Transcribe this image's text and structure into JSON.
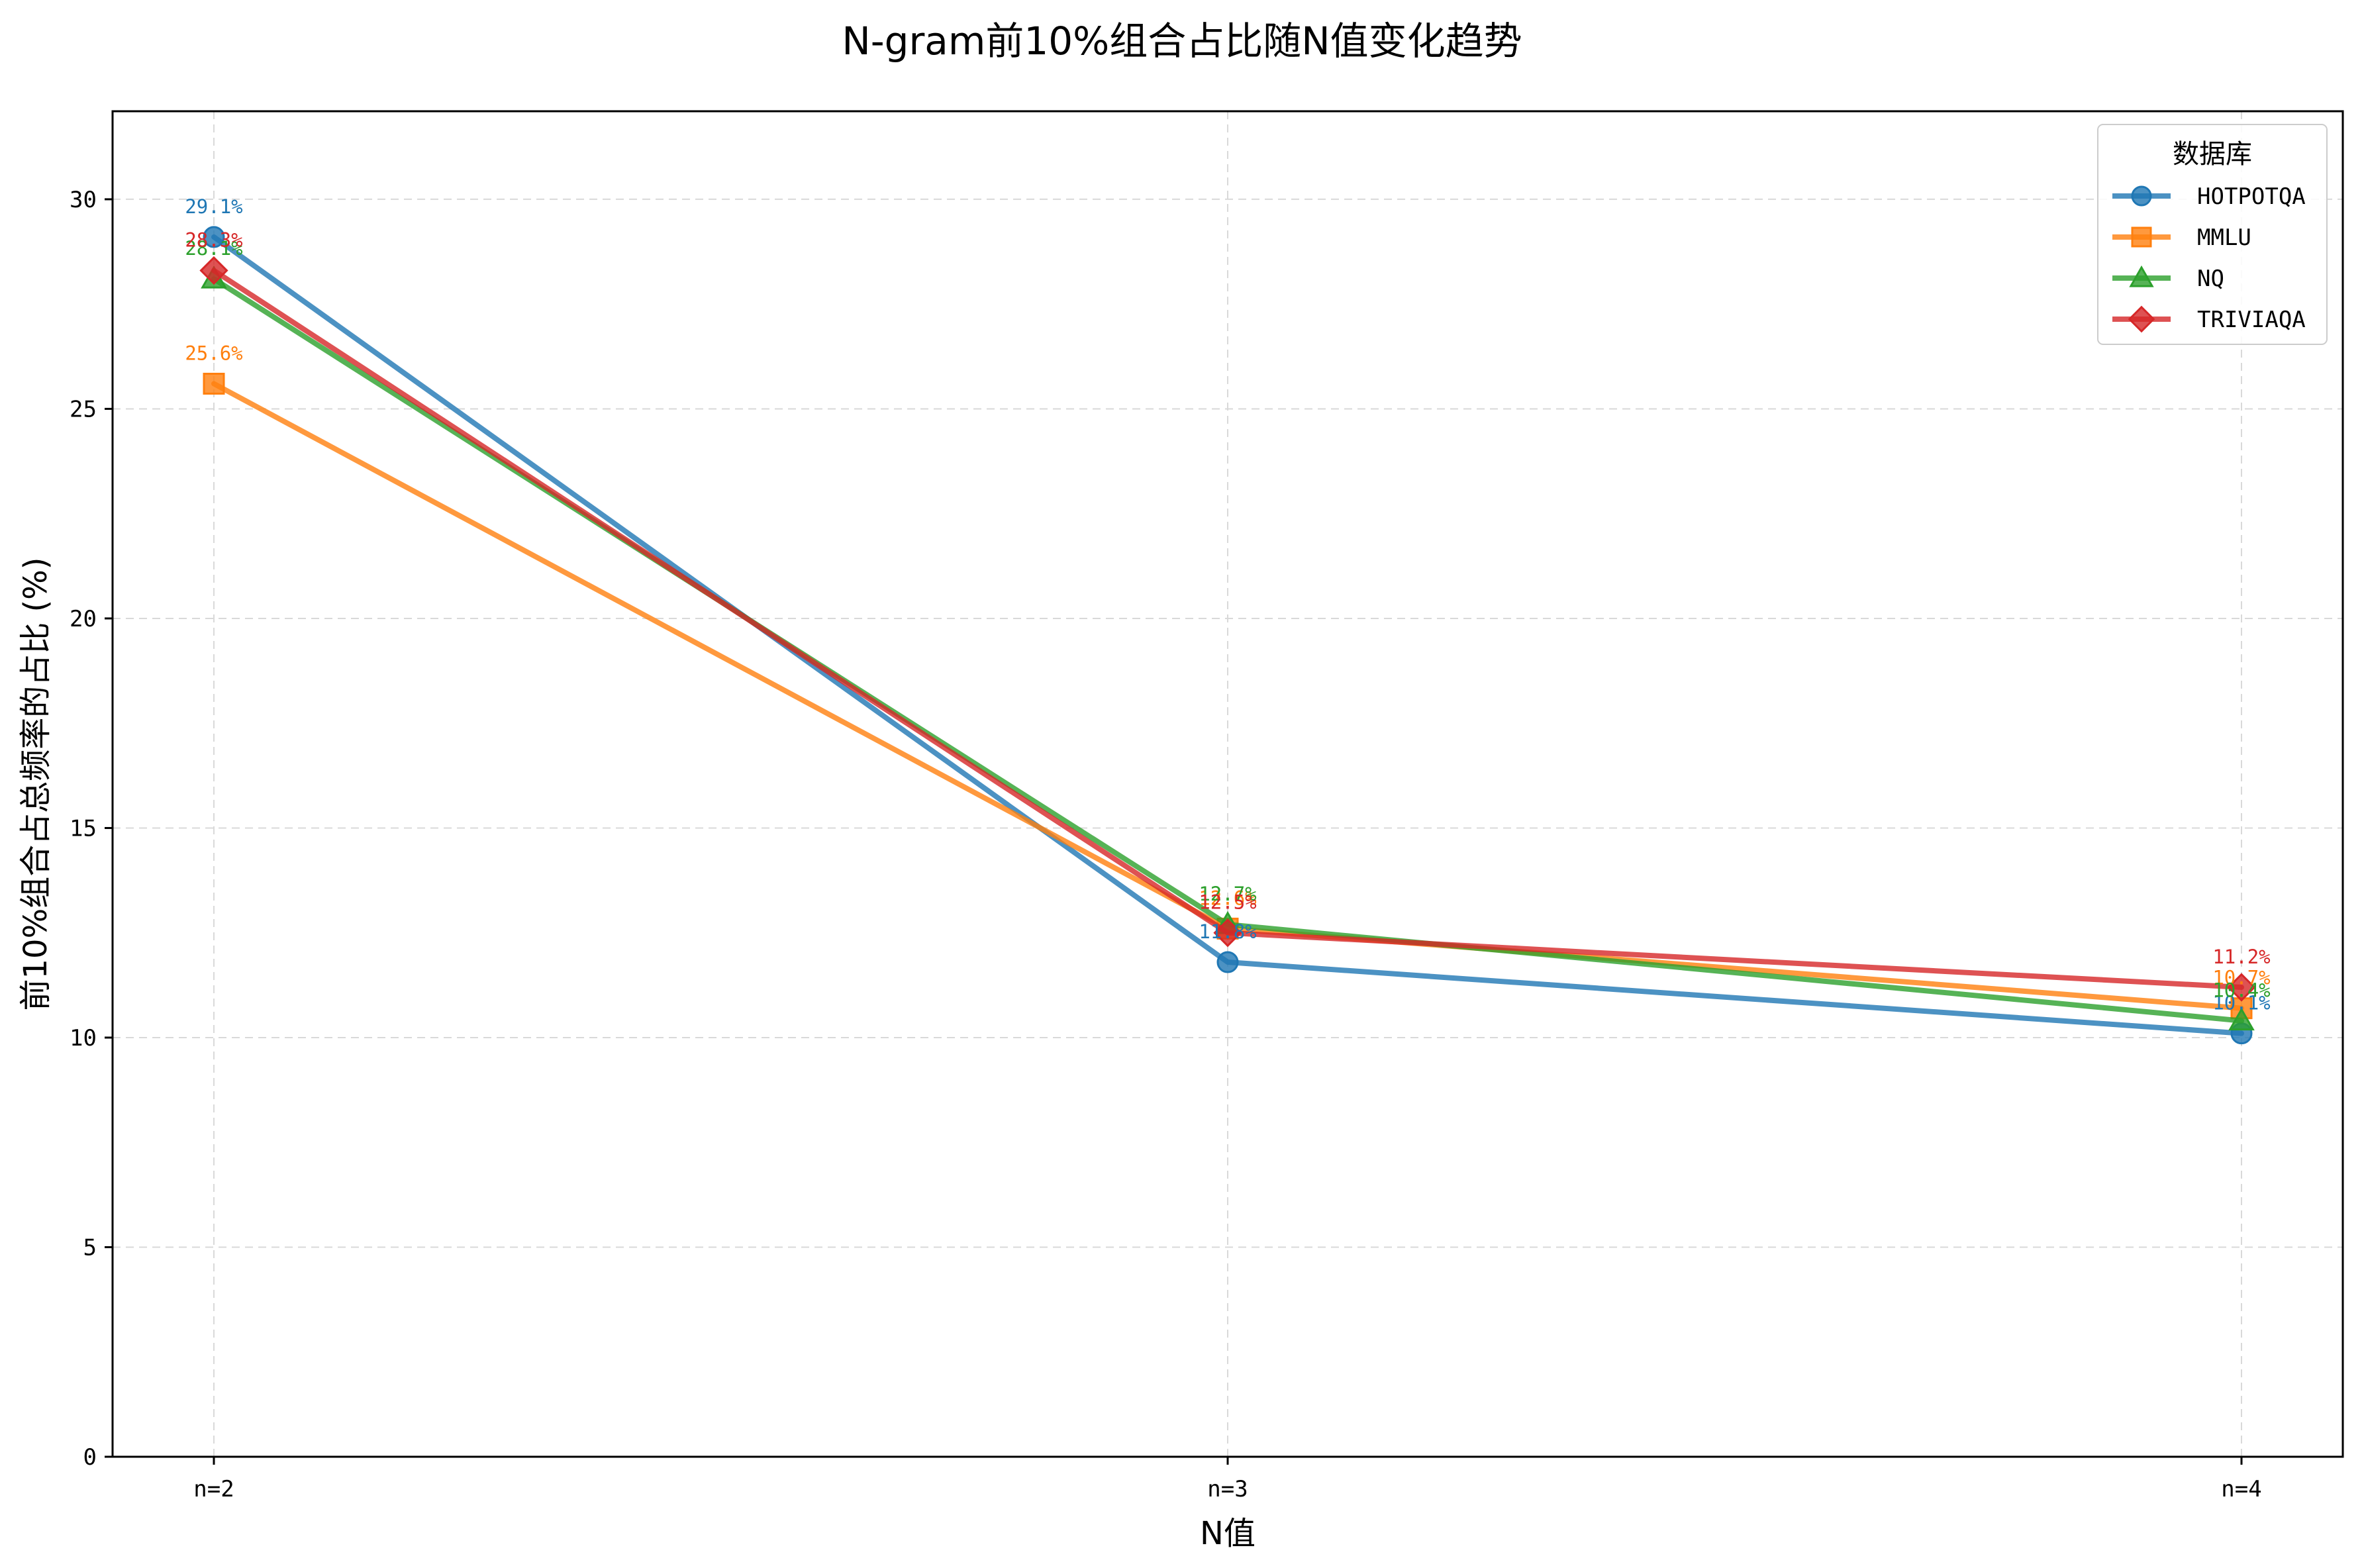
{
  "chart_data": {
    "type": "line",
    "title": "N-gram前10%组合占比随N值变化趋势",
    "xlabel": "N值",
    "ylabel": "前10%组合占总频率的占比 (%)",
    "categories": [
      "n=2",
      "n=3",
      "n=4"
    ],
    "ylim": [
      0,
      32.1
    ],
    "yticks": [
      0,
      5,
      10,
      15,
      20,
      25,
      30
    ],
    "grid": true,
    "legend": {
      "title": "数据库",
      "placement": "top-right"
    },
    "series": [
      {
        "name": "HOTPOTQA",
        "values": [
          29.1,
          11.8,
          10.1
        ],
        "labels": [
          "29.1%",
          "11.8%",
          "10.1%"
        ],
        "color": "#1f77b4",
        "marker": "circle"
      },
      {
        "name": "MMLU",
        "values": [
          25.6,
          12.6,
          10.7
        ],
        "labels": [
          "25.6%",
          "12.6%",
          "10.7%"
        ],
        "color": "#ff7f0e",
        "marker": "square"
      },
      {
        "name": "NQ",
        "values": [
          28.1,
          12.7,
          10.4
        ],
        "labels": [
          "28.1%",
          "12.7%",
          "10.4%"
        ],
        "color": "#2ca02c",
        "marker": "triangle"
      },
      {
        "name": "TRIVIAQA",
        "values": [
          28.3,
          12.5,
          11.2
        ],
        "labels": [
          "28.3%",
          "12.5%",
          "11.2%"
        ],
        "color": "#d62728",
        "marker": "diamond"
      }
    ]
  }
}
